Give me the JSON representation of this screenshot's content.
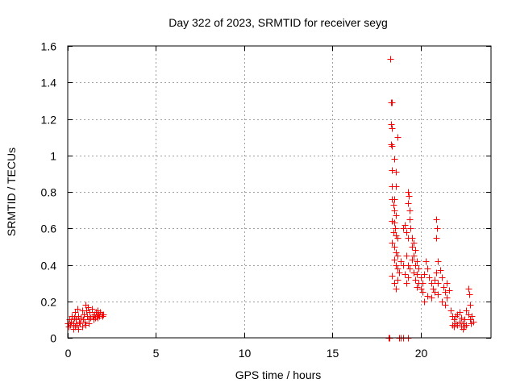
{
  "chart_data": {
    "type": "scatter",
    "title": "Day 322 of 2023, SRMTID for receiver seyg",
    "xlabel": "GPS time / hours",
    "ylabel": "SRMTID / TECUs",
    "xlim": [
      0,
      24
    ],
    "ylim": [
      0,
      1.6
    ],
    "xticks": [
      0,
      5,
      10,
      15,
      20
    ],
    "xtick_labels": [
      "0",
      "5",
      "10",
      "15",
      "20"
    ],
    "yticks": [
      0,
      0.2,
      0.4,
      0.6,
      0.8,
      1,
      1.2,
      1.4,
      1.6
    ],
    "ytick_labels": [
      "0",
      "0.2",
      "0.4",
      "0.6",
      "0.8",
      "1",
      "1.2",
      "1.4",
      "1.6"
    ],
    "grid": true,
    "marker": "plus",
    "series": [
      {
        "name": "SRMTID",
        "color": "#ff0000",
        "points": [
          [
            0.0,
            0.08
          ],
          [
            0.05,
            0.06
          ],
          [
            0.1,
            0.1
          ],
          [
            0.15,
            0.07
          ],
          [
            0.2,
            0.09
          ],
          [
            0.25,
            0.12
          ],
          [
            0.3,
            0.08
          ],
          [
            0.35,
            0.11
          ],
          [
            0.4,
            0.14
          ],
          [
            0.45,
            0.1
          ],
          [
            0.5,
            0.07
          ],
          [
            0.55,
            0.16
          ],
          [
            0.6,
            0.12
          ],
          [
            0.65,
            0.09
          ],
          [
            0.7,
            0.08
          ],
          [
            0.75,
            0.11
          ],
          [
            0.8,
            0.06
          ],
          [
            0.85,
            0.1
          ],
          [
            0.9,
            0.13
          ],
          [
            0.95,
            0.09
          ],
          [
            1.0,
            0.18
          ],
          [
            1.05,
            0.15
          ],
          [
            1.1,
            0.12
          ],
          [
            1.15,
            0.17
          ],
          [
            1.2,
            0.1
          ],
          [
            1.25,
            0.14
          ],
          [
            1.3,
            0.11
          ],
          [
            1.35,
            0.16
          ],
          [
            1.4,
            0.12
          ],
          [
            1.45,
            0.1
          ],
          [
            1.5,
            0.13
          ],
          [
            1.55,
            0.11
          ],
          [
            1.6,
            0.14
          ],
          [
            1.65,
            0.12
          ],
          [
            1.7,
            0.15
          ],
          [
            1.75,
            0.13
          ],
          [
            1.8,
            0.12
          ],
          [
            1.85,
            0.14
          ],
          [
            1.9,
            0.13
          ],
          [
            1.95,
            0.12
          ],
          [
            2.0,
            0.13
          ],
          [
            0.3,
            0.05
          ],
          [
            0.6,
            0.05
          ],
          [
            1.2,
            0.08
          ],
          [
            0.8,
            0.15
          ],
          [
            1.0,
            0.07
          ],
          [
            0.4,
            0.06
          ],
          [
            1.7,
            0.11
          ],
          [
            18.2,
            0.0
          ],
          [
            18.25,
            0.0
          ],
          [
            18.8,
            0.0
          ],
          [
            18.9,
            0.0
          ],
          [
            19.0,
            0.0
          ],
          [
            19.3,
            0.0
          ],
          [
            18.3,
            1.53
          ],
          [
            18.35,
            1.29
          ],
          [
            18.4,
            1.29
          ],
          [
            18.35,
            1.17
          ],
          [
            18.4,
            1.15
          ],
          [
            18.35,
            1.06
          ],
          [
            18.4,
            1.05
          ],
          [
            18.5,
            0.98
          ],
          [
            18.7,
            1.1
          ],
          [
            18.4,
            0.92
          ],
          [
            18.6,
            0.91
          ],
          [
            18.4,
            0.83
          ],
          [
            18.6,
            0.83
          ],
          [
            18.4,
            0.76
          ],
          [
            18.5,
            0.76
          ],
          [
            18.45,
            0.73
          ],
          [
            18.5,
            0.7
          ],
          [
            18.6,
            0.67
          ],
          [
            18.4,
            0.64
          ],
          [
            18.5,
            0.63
          ],
          [
            18.55,
            0.6
          ],
          [
            18.45,
            0.58
          ],
          [
            18.6,
            0.56
          ],
          [
            18.7,
            0.55
          ],
          [
            18.4,
            0.52
          ],
          [
            18.5,
            0.5
          ],
          [
            18.6,
            0.47
          ],
          [
            18.7,
            0.45
          ],
          [
            18.5,
            0.43
          ],
          [
            18.6,
            0.4
          ],
          [
            18.7,
            0.38
          ],
          [
            18.8,
            0.36
          ],
          [
            18.4,
            0.34
          ],
          [
            18.5,
            0.3
          ],
          [
            18.6,
            0.27
          ],
          [
            18.7,
            0.32
          ],
          [
            18.9,
            0.42
          ],
          [
            19.0,
            0.4
          ],
          [
            19.1,
            0.35
          ],
          [
            19.0,
            0.6
          ],
          [
            19.1,
            0.62
          ],
          [
            19.2,
            0.58
          ],
          [
            19.3,
            0.55
          ],
          [
            19.3,
            0.8
          ],
          [
            19.35,
            0.78
          ],
          [
            19.3,
            0.74
          ],
          [
            19.4,
            0.7
          ],
          [
            19.4,
            0.65
          ],
          [
            19.45,
            0.6
          ],
          [
            19.5,
            0.55
          ],
          [
            19.5,
            0.5
          ],
          [
            19.6,
            0.52
          ],
          [
            19.6,
            0.45
          ],
          [
            19.7,
            0.48
          ],
          [
            19.7,
            0.4
          ],
          [
            19.8,
            0.42
          ],
          [
            19.8,
            0.35
          ],
          [
            19.9,
            0.38
          ],
          [
            19.9,
            0.3
          ],
          [
            20.0,
            0.33
          ],
          [
            20.0,
            0.27
          ],
          [
            20.1,
            0.3
          ],
          [
            20.1,
            0.25
          ],
          [
            19.2,
            0.45
          ],
          [
            19.3,
            0.4
          ],
          [
            19.4,
            0.38
          ],
          [
            19.5,
            0.43
          ],
          [
            19.6,
            0.36
          ],
          [
            19.7,
            0.32
          ],
          [
            19.8,
            0.28
          ],
          [
            19.2,
            0.3
          ],
          [
            19.3,
            0.33
          ],
          [
            20.2,
            0.35
          ],
          [
            20.3,
            0.42
          ],
          [
            20.4,
            0.38
          ],
          [
            20.5,
            0.33
          ],
          [
            20.6,
            0.3
          ],
          [
            20.7,
            0.27
          ],
          [
            20.8,
            0.32
          ],
          [
            20.9,
            0.36
          ],
          [
            21.0,
            0.3
          ],
          [
            20.9,
            0.65
          ],
          [
            20.95,
            0.6
          ],
          [
            20.9,
            0.55
          ],
          [
            21.0,
            0.42
          ],
          [
            21.1,
            0.37
          ],
          [
            21.2,
            0.33
          ],
          [
            21.3,
            0.28
          ],
          [
            21.4,
            0.25
          ],
          [
            21.5,
            0.22
          ],
          [
            20.2,
            0.2
          ],
          [
            20.4,
            0.23
          ],
          [
            20.6,
            0.22
          ],
          [
            20.8,
            0.25
          ],
          [
            21.0,
            0.24
          ],
          [
            21.2,
            0.2
          ],
          [
            21.4,
            0.18
          ],
          [
            21.5,
            0.3
          ],
          [
            21.6,
            0.26
          ],
          [
            21.7,
            0.15
          ],
          [
            21.8,
            0.12
          ],
          [
            21.9,
            0.1
          ],
          [
            22.0,
            0.08
          ],
          [
            22.1,
            0.07
          ],
          [
            22.2,
            0.09
          ],
          [
            22.3,
            0.06
          ],
          [
            22.4,
            0.08
          ],
          [
            22.5,
            0.1
          ],
          [
            21.8,
            0.07
          ],
          [
            22.0,
            0.12
          ],
          [
            22.2,
            0.14
          ],
          [
            22.4,
            0.05
          ],
          [
            22.6,
            0.07
          ],
          [
            22.7,
            0.13
          ],
          [
            22.8,
            0.18
          ],
          [
            22.7,
            0.27
          ],
          [
            22.75,
            0.24
          ],
          [
            22.8,
            0.1
          ],
          [
            22.9,
            0.12
          ],
          [
            23.0,
            0.09
          ],
          [
            22.6,
            0.15
          ],
          [
            22.5,
            0.06
          ],
          [
            22.3,
            0.11
          ],
          [
            22.1,
            0.13
          ],
          [
            21.9,
            0.06
          ],
          [
            22.85,
            0.08
          ]
        ]
      }
    ]
  }
}
